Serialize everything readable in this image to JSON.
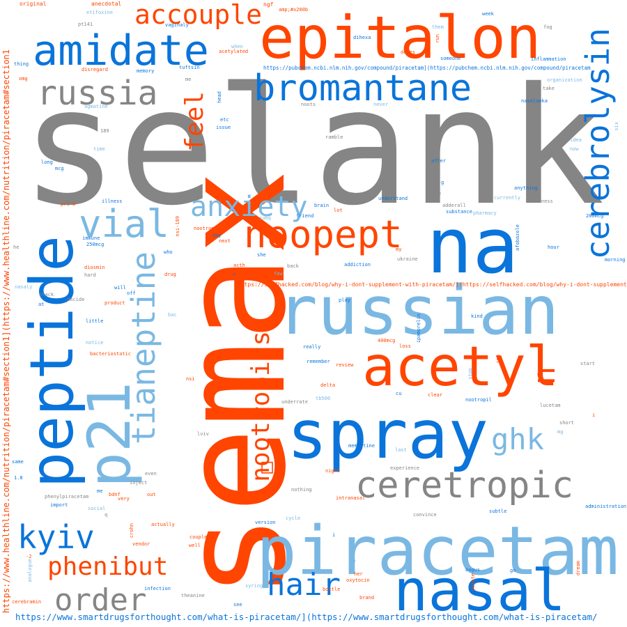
{
  "colors": {
    "gray": "#858585",
    "orange": "#ff4500",
    "blue": "#0a74da",
    "light": "#7ab8e3"
  },
  "words": [
    {
      "id": "selank",
      "text": "selank"
    },
    {
      "id": "semax",
      "text": "semax"
    },
    {
      "id": "epitalon",
      "text": "epitalon"
    },
    {
      "id": "na",
      "text": "na"
    },
    {
      "id": "russian",
      "text": "russian"
    },
    {
      "id": "spray",
      "text": "spray"
    },
    {
      "id": "piracetam",
      "text": "piracetam"
    },
    {
      "id": "peptide",
      "text": "peptide"
    },
    {
      "id": "p21",
      "text": "p21"
    },
    {
      "id": "nasal",
      "text": "nasal"
    },
    {
      "id": "acetyl",
      "text": "acetyl"
    },
    {
      "id": "amidate",
      "text": "amidate"
    },
    {
      "id": "cerebrolysin",
      "text": "cerebrolysin"
    },
    {
      "id": "bromantane",
      "text": "bromantane"
    },
    {
      "id": "russia",
      "text": "russia"
    },
    {
      "id": "ceretropic",
      "text": "ceretropic"
    },
    {
      "id": "noopept",
      "text": "noopept"
    },
    {
      "id": "tianeptine",
      "text": "tianeptine"
    },
    {
      "id": "vial",
      "text": "vial"
    },
    {
      "id": "nootropics",
      "text": "nootropics"
    },
    {
      "id": "accouple",
      "text": "accouple"
    },
    {
      "id": "anxiety",
      "text": "anxiety"
    },
    {
      "id": "feel",
      "text": "feel"
    },
    {
      "id": "ghk",
      "text": "ghk"
    },
    {
      "id": "n",
      "text": "n"
    },
    {
      "id": "order",
      "text": "order"
    },
    {
      "id": "kyiv",
      "text": "kyiv"
    },
    {
      "id": "phenibut",
      "text": "phenibut"
    },
    {
      "id": "hair",
      "text": "hair"
    },
    {
      "id": "box",
      "text": "□"
    },
    {
      "id": "url-smartdrugs",
      "text": "https://www.smartdrugsforthought.com/what-is-piracetam/](https://www.smartdrugsforthought.com/what-is-piracetam/"
    },
    {
      "id": "url-healthline",
      "text": "https://www.healthline.com/nutrition/piracetam#section1](https://www.healthline.com/nutrition/piracetam#section1"
    },
    {
      "id": "url-selfhacked",
      "text": "https://selfhacked.com/blog/why-i-dont-supplement-with-piracetam/](https://selfhacked.com/blog/why-i-dont-supplement-with-piracetam/"
    },
    {
      "id": "url-pubchem",
      "text": "https://pubchem.ncbi.nlm.nih.gov/compound/piracetam](https://pubchem.ncbi.nlm.nih.gov/compound/piracetam"
    },
    {
      "id": "original",
      "text": "original"
    },
    {
      "id": "anecdotal",
      "text": "anecdotal"
    },
    {
      "id": "ngf",
      "text": "ngf"
    },
    {
      "id": "amp",
      "text": "amp;#x200b"
    },
    {
      "id": "week",
      "text": "week"
    },
    {
      "id": "etifoxine",
      "text": "etifoxine"
    },
    {
      "id": "pt141",
      "text": "pt141"
    },
    {
      "id": "vaginaly",
      "text": "vaginaly"
    },
    {
      "id": "acetylated",
      "text": "acetylated"
    },
    {
      "id": "dihexa",
      "text": "dihexa"
    },
    {
      "id": "fog",
      "text": "fog"
    },
    {
      "id": "run",
      "text": "run"
    },
    {
      "id": "them",
      "text": "them"
    },
    {
      "id": "when",
      "text": "when"
    },
    {
      "id": "doses",
      "text": "doses"
    },
    {
      "id": "someone",
      "text": "someone"
    },
    {
      "id": "inflammation",
      "text": "inflammation"
    },
    {
      "id": "thing",
      "text": "thing"
    },
    {
      "id": "disregard",
      "text": "disregard"
    },
    {
      "id": "memory",
      "text": "memory"
    },
    {
      "id": "tuftsin",
      "text": "tuftsin"
    },
    {
      "id": "omg",
      "text": "omg"
    },
    {
      "id": "me",
      "text": "me"
    },
    {
      "id": "organization",
      "text": "organization"
    },
    {
      "id": "take",
      "text": "take"
    },
    {
      "id": "head",
      "text": "head"
    },
    {
      "id": "noots",
      "text": "noots"
    },
    {
      "id": "naselanka",
      "text": "naselanka"
    },
    {
      "id": "agmatine",
      "text": "agmatine"
    },
    {
      "id": "never",
      "text": "never"
    },
    {
      "id": "etc",
      "text": "etc"
    },
    {
      "id": "issue",
      "text": "issue"
    },
    {
      "id": "six",
      "text": "six"
    },
    {
      "id": "n189",
      "text": "189"
    },
    {
      "id": "ramble",
      "text": "ramble"
    },
    {
      "id": "idea",
      "text": "idea"
    },
    {
      "id": "now",
      "text": "now"
    },
    {
      "id": "time",
      "text": "time"
    },
    {
      "id": "long",
      "text": "long"
    },
    {
      "id": "mcg",
      "text": "mcg"
    },
    {
      "id": "after",
      "text": "after"
    },
    {
      "id": "g",
      "text": "g"
    },
    {
      "id": "anything",
      "text": "anything"
    },
    {
      "id": "erase",
      "text": "erase"
    },
    {
      "id": "understand",
      "text": "understand"
    },
    {
      "id": "currently",
      "text": "currently"
    },
    {
      "id": "haziness",
      "text": "haziness"
    },
    {
      "id": "illness",
      "text": "illness"
    },
    {
      "id": "prl8",
      "text": "prl-8"
    },
    {
      "id": "brain",
      "text": "brain"
    },
    {
      "id": "adderall",
      "text": "adderall"
    },
    {
      "id": "substance",
      "text": "substance"
    },
    {
      "id": "pharmacy",
      "text": "pharmacy"
    },
    {
      "id": "friend",
      "text": "friend"
    },
    {
      "id": "lot",
      "text": "lot"
    },
    {
      "id": "subq",
      "text": "subq"
    },
    {
      "id": "mcg200",
      "text": "200mcg"
    },
    {
      "id": "nsi189",
      "text": "nsi-189"
    },
    {
      "id": "nootropic",
      "text": "nootropic"
    },
    {
      "id": "day",
      "text": "day"
    },
    {
      "id": "next",
      "text": "next"
    },
    {
      "id": "immune",
      "text": "immune"
    },
    {
      "id": "mcg250",
      "text": "250mcg"
    },
    {
      "id": "he",
      "text": "he"
    },
    {
      "id": "who",
      "text": "who"
    },
    {
      "id": "she",
      "text": "she"
    },
    {
      "id": "my",
      "text": "my"
    },
    {
      "id": "ukraine",
      "text": "ukraine"
    },
    {
      "id": "afobazole",
      "text": "afobazole"
    },
    {
      "id": "hour",
      "text": "hour"
    },
    {
      "id": "morning",
      "text": "morning"
    },
    {
      "id": "acth",
      "text": "acth"
    },
    {
      "id": "eq",
      "text": "="
    },
    {
      "id": "few",
      "text": "few"
    },
    {
      "id": "back",
      "text": "back"
    },
    {
      "id": "addiction",
      "text": "addiction"
    },
    {
      "id": "diosmin",
      "text": "diosmin"
    },
    {
      "id": "hard",
      "text": "hard"
    },
    {
      "id": "drug",
      "text": "drug"
    },
    {
      "id": "will",
      "text": "will"
    },
    {
      "id": "off",
      "text": "off"
    },
    {
      "id": "nasaly",
      "text": "nasaly"
    },
    {
      "id": "stack",
      "text": "stack"
    },
    {
      "id": "at",
      "text": "at"
    },
    {
      "id": "decide",
      "text": "decide"
    },
    {
      "id": "product",
      "text": "product"
    },
    {
      "id": "play",
      "text": "play"
    },
    {
      "id": "bac",
      "text": "bac"
    },
    {
      "id": "little",
      "text": "little"
    },
    {
      "id": "kind",
      "text": "kind"
    },
    {
      "id": "notice",
      "text": "notice"
    },
    {
      "id": "mcg400",
      "text": "400mcg"
    },
    {
      "id": "loss",
      "text": "loss"
    },
    {
      "id": "ipamorelin",
      "text": "ipamorelin"
    },
    {
      "id": "really",
      "text": "really"
    },
    {
      "id": "bacteriostatic",
      "text": "bacteriostatic"
    },
    {
      "id": "remember",
      "text": "remember"
    },
    {
      "id": "review",
      "text": "review"
    },
    {
      "id": "n100",
      "text": "100"
    },
    {
      "id": "start",
      "text": "start"
    },
    {
      "id": "delta",
      "text": "delta"
    },
    {
      "id": "stop",
      "text": "stop"
    },
    {
      "id": "nsi",
      "text": "nsi"
    },
    {
      "id": "cu",
      "text": "cu"
    },
    {
      "id": "clear",
      "text": "clear"
    },
    {
      "id": "tb500",
      "text": "tb500"
    },
    {
      "id": "underrate",
      "text": "underrate"
    },
    {
      "id": "nootropil",
      "text": "nootropil"
    },
    {
      "id": "lucetam",
      "text": "lucetam"
    },
    {
      "id": "i",
      "text": "i"
    },
    {
      "id": "lviv",
      "text": "lviv"
    },
    {
      "id": "short",
      "text": "short"
    },
    {
      "id": "mg",
      "text": "mg"
    },
    {
      "id": "last",
      "text": "last"
    },
    {
      "id": "same",
      "text": "same"
    },
    {
      "id": "memantine",
      "text": "memantine"
    },
    {
      "id": "experience",
      "text": "experience"
    },
    {
      "id": "night",
      "text": "night"
    },
    {
      "id": "n18",
      "text": "1.8"
    },
    {
      "id": "even",
      "text": "even"
    },
    {
      "id": "inject",
      "text": "inject"
    },
    {
      "id": "nothing",
      "text": "nothing"
    },
    {
      "id": "phenylpiracetam",
      "text": "phenylpiracetam"
    },
    {
      "id": "me2",
      "text": "me"
    },
    {
      "id": "bdnf",
      "text": "bdnf"
    },
    {
      "id": "out",
      "text": "out"
    },
    {
      "id": "very",
      "text": "very"
    },
    {
      "id": "import",
      "text": "import"
    },
    {
      "id": "intranasal",
      "text": "intranasal"
    },
    {
      "id": "subtle",
      "text": "subtle"
    },
    {
      "id": "administration",
      "text": "administration"
    },
    {
      "id": "social",
      "text": "social"
    },
    {
      "id": "q",
      "text": "q"
    },
    {
      "id": "cycle",
      "text": "cycle"
    },
    {
      "id": "convince",
      "text": "convince"
    },
    {
      "id": "actually",
      "text": "actually"
    },
    {
      "id": "version",
      "text": "version"
    },
    {
      "id": "crohn",
      "text": "crohn"
    },
    {
      "id": "couple",
      "text": "couple"
    },
    {
      "id": "vendor",
      "text": "vendor"
    },
    {
      "id": "well",
      "text": "well"
    },
    {
      "id": "i2",
      "text": "i"
    },
    {
      "id": "minus2",
      "text": "-2"
    },
    {
      "id": "up",
      "text": "up"
    },
    {
      "id": "bogus",
      "text": "bogus"
    },
    {
      "id": "go",
      "text": "go"
    },
    {
      "id": "dream",
      "text": "dream"
    },
    {
      "id": "analogue",
      "text": "analogue"
    },
    {
      "id": "her",
      "text": "her"
    },
    {
      "id": "oxytocin",
      "text": "oxytocin"
    },
    {
      "id": "infection",
      "text": "infection"
    },
    {
      "id": "syringe",
      "text": "syringe"
    },
    {
      "id": "bottle",
      "text": "bottle"
    },
    {
      "id": "ooiate",
      "text": "ooiate"
    },
    {
      "id": "cerebramin",
      "text": "cerebramin"
    },
    {
      "id": "theanine",
      "text": "theanine"
    },
    {
      "id": "see",
      "text": "see"
    },
    {
      "id": "brand",
      "text": "brand"
    }
  ]
}
